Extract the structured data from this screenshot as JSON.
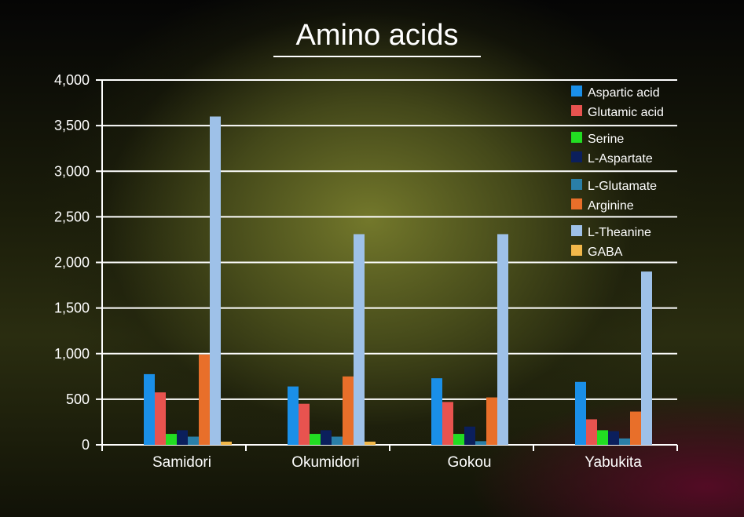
{
  "chart_data": {
    "type": "bar",
    "title": "Amino acids",
    "xlabel": "",
    "ylabel": "",
    "ylim": [
      0,
      4000
    ],
    "yticks": [
      "0",
      "500",
      "1,000",
      "1,500",
      "2,000",
      "2,500",
      "3,000",
      "3,500",
      "4,000"
    ],
    "grid": true,
    "legend_position": "top-right",
    "categories": [
      "Samidori",
      "Okumidori",
      "Gokou",
      "Yabukita"
    ],
    "series": [
      {
        "name": "Aspartic acid",
        "color": "#1a8fe8",
        "values": [
          775,
          640,
          730,
          690
        ]
      },
      {
        "name": "Glutamic acid",
        "color": "#e8534f",
        "values": [
          575,
          450,
          470,
          280
        ]
      },
      {
        "name": "Serine",
        "color": "#22dd22",
        "values": [
          120,
          120,
          120,
          160
        ]
      },
      {
        "name": "L-Aspartate",
        "color": "#0b1f5c",
        "values": [
          160,
          160,
          200,
          150
        ]
      },
      {
        "name": "L-Glutamate",
        "color": "#2a7fa8",
        "values": [
          90,
          90,
          40,
          70
        ]
      },
      {
        "name": "Arginine",
        "color": "#e86f2a",
        "values": [
          990,
          750,
          520,
          365
        ]
      },
      {
        "name": "L-Theanine",
        "color": "#9ec1e8",
        "values": [
          3600,
          2310,
          2310,
          1900
        ]
      },
      {
        "name": "GABA",
        "color": "#f2b84a",
        "values": [
          35,
          35,
          0,
          0
        ]
      }
    ]
  }
}
